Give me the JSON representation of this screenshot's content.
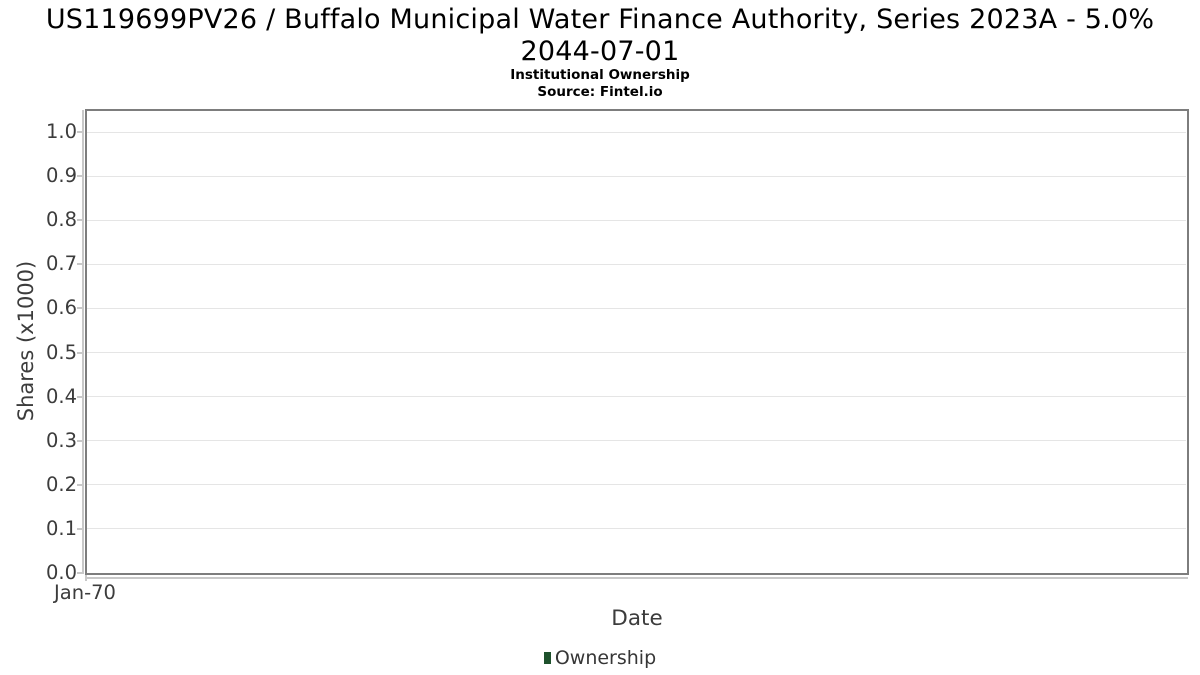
{
  "header": {
    "title_line1": "US119699PV26 / Buffalo Municipal Water Finance Authority, Series 2023A - 5.0%",
    "title_line2": "2044-07-01",
    "subtitle": "Institutional Ownership",
    "source": "Source: Fintel.io"
  },
  "chart_data": {
    "type": "line",
    "title": "US119699PV26 / Buffalo Municipal Water Finance Authority, Series 2023A - 5.0% 2044-07-01",
    "subtitle": "Institutional Ownership",
    "source_note": "Source: Fintel.io",
    "xlabel": "Date",
    "ylabel": "Shares (x1000)",
    "x_tick_labels": [
      "Jan-70"
    ],
    "y_tick_labels": [
      "0.0",
      "0.1",
      "0.2",
      "0.3",
      "0.4",
      "0.5",
      "0.6",
      "0.7",
      "0.8",
      "0.9",
      "1.0"
    ],
    "y_tick_values": [
      0,
      0.1,
      0.2,
      0.3,
      0.4,
      0.5,
      0.6,
      0.7,
      0.8,
      0.9,
      1.0
    ],
    "ylim": [
      0,
      1.05
    ],
    "grid": true,
    "legend": {
      "position": "bottom-center",
      "entries": [
        {
          "label": "Ownership",
          "color": "#1e512c",
          "marker": "square"
        }
      ]
    },
    "series": [
      {
        "name": "Ownership",
        "x": [],
        "y": []
      }
    ]
  },
  "colors": {
    "plot_border": "#7d7d7d",
    "grid_line": "#e5e5e5",
    "axis_line": "#c8c8c8",
    "tick_label": "#3c3c3c",
    "title_text": "#000000",
    "legend_green": "#1e512c"
  }
}
